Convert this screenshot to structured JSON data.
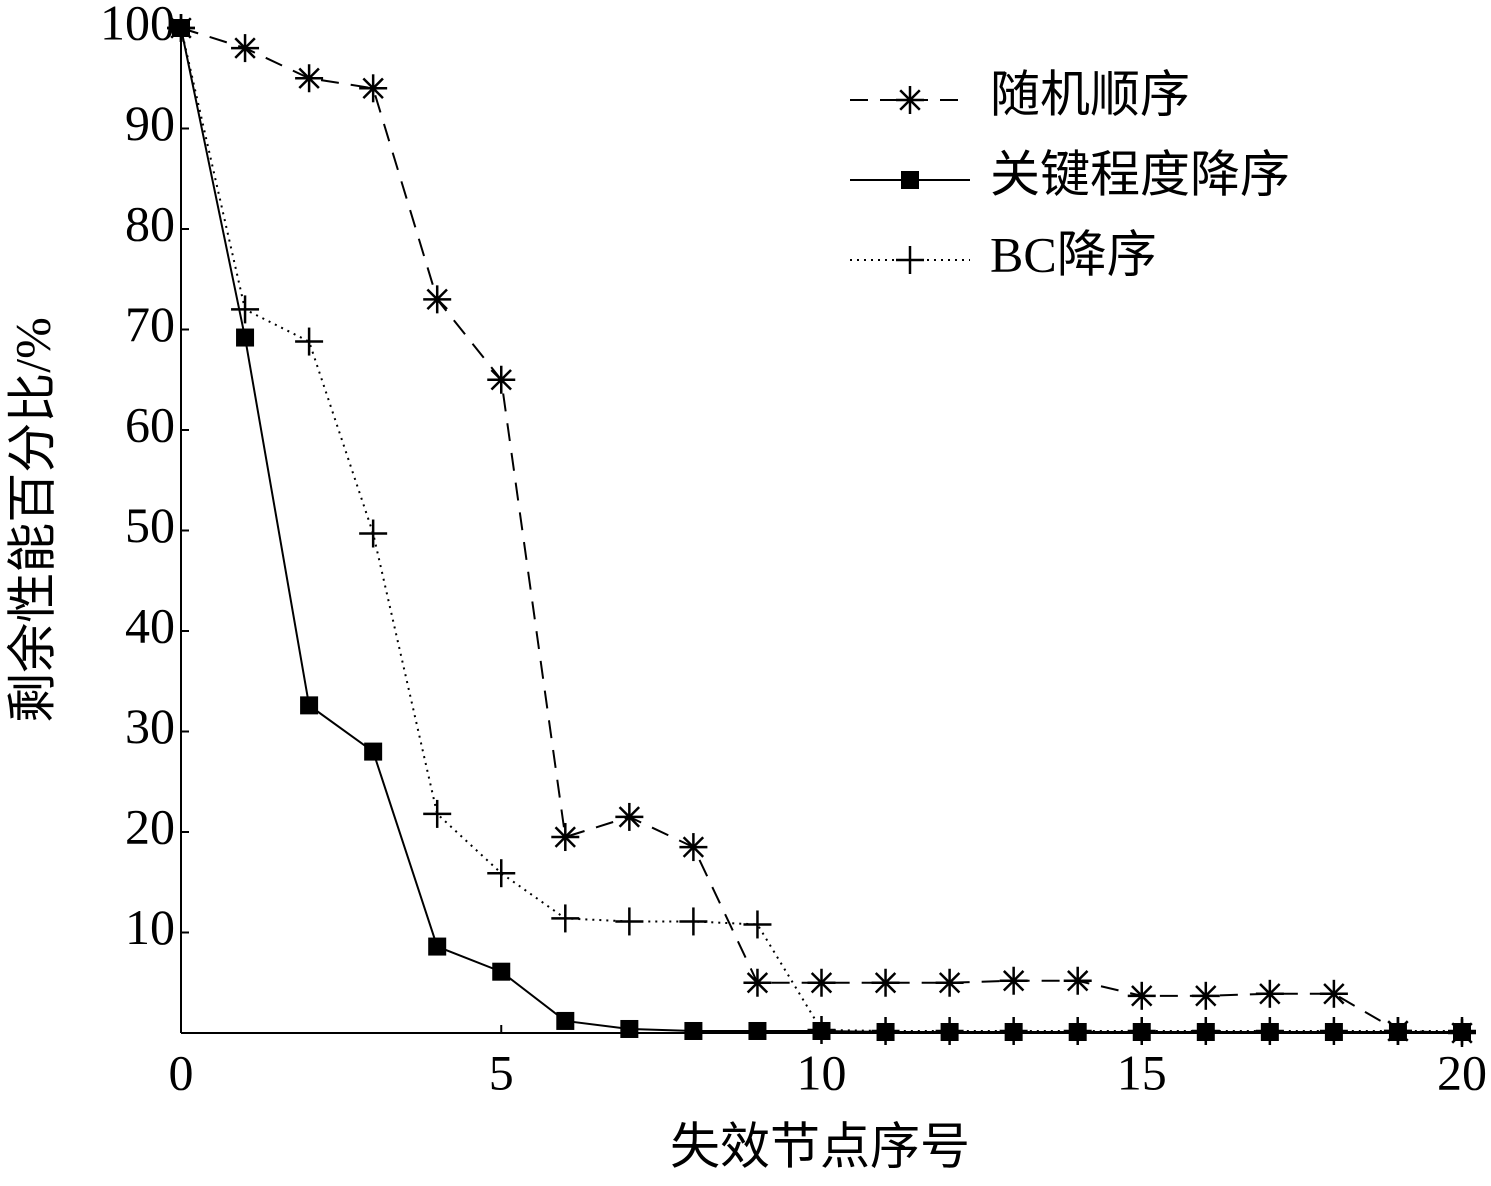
{
  "chart_data": {
    "type": "line",
    "x_label": "失效节点序号",
    "y_label": "剩余性能百分比/%",
    "x": [
      0,
      1,
      2,
      3,
      4,
      5,
      6,
      7,
      8,
      9,
      10,
      11,
      12,
      13,
      14,
      15,
      16,
      17,
      18,
      19,
      20
    ],
    "series": [
      {
        "name": "随机顺序",
        "color": "#000000",
        "dash": "dashed",
        "marker": "asterisk",
        "values": [
          100,
          98,
          95,
          94,
          73,
          65,
          19.5,
          21.5,
          18.5,
          5,
          5,
          5,
          5,
          5.2,
          5.2,
          3.7,
          3.7,
          3.9,
          3.9,
          0.2,
          0
        ]
      },
      {
        "name": "关键程度降序",
        "color": "#000000",
        "dash": "solid",
        "marker": "square",
        "values": [
          100,
          69.2,
          32.6,
          28,
          8.6,
          6.1,
          1.2,
          0.4,
          0.2,
          0.2,
          0.2,
          0.1,
          0.1,
          0.1,
          0.1,
          0.1,
          0.1,
          0.1,
          0.1,
          0.1,
          0.1
        ]
      },
      {
        "name": "BC降序",
        "color": "#000000",
        "dash": "dotted",
        "marker": "plus",
        "values": [
          100,
          72,
          68.8,
          49.7,
          21.8,
          15.9,
          11.4,
          11.1,
          11.1,
          10.8,
          0.3,
          0.2,
          0.2,
          0.2,
          0.2,
          0.2,
          0.2,
          0.2,
          0.2,
          0.2,
          0.2
        ]
      }
    ],
    "xlim": [
      0,
      20
    ],
    "xticks": [
      0,
      5,
      10,
      15,
      20
    ],
    "ylim": [
      0,
      100
    ],
    "yticks": [
      10,
      20,
      30,
      40,
      50,
      60,
      70,
      80,
      90,
      100
    ],
    "legend_position": "upper right"
  }
}
